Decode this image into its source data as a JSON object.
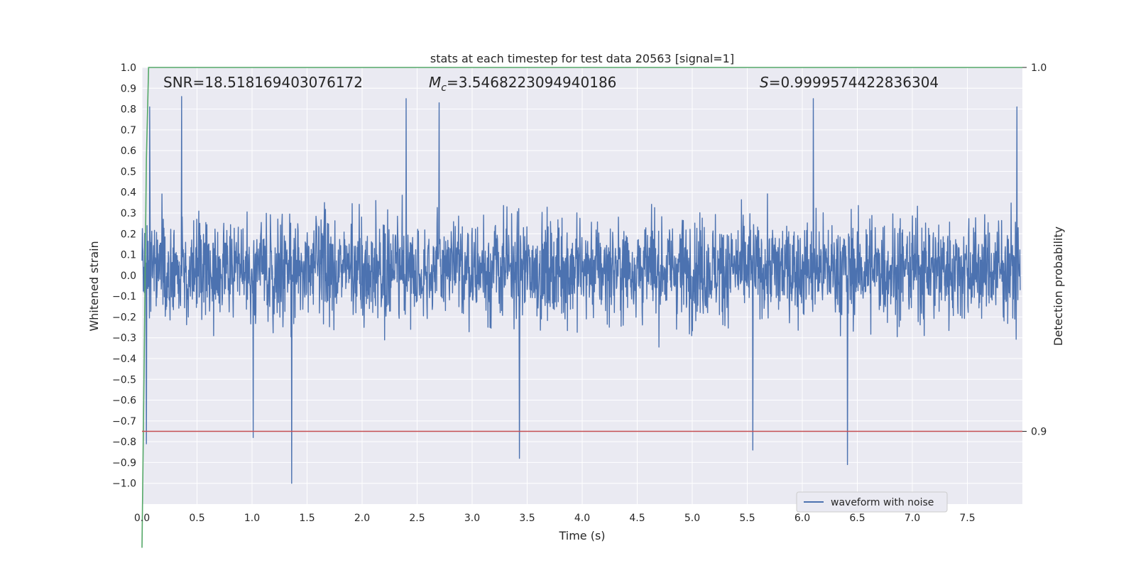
{
  "chart_data": {
    "type": "line",
    "title": "stats at each timestep for test data 20563 [signal=1]",
    "xlabel": "Time (s)",
    "ylabel": "Whitened strain",
    "y2label": "Detection probability",
    "xlim": [
      0.0,
      8.0
    ],
    "ylim": [
      -1.1,
      1.0
    ],
    "y2lim": [
      0.88,
      1.0
    ],
    "grid": true,
    "legend_position": "bottom-right",
    "x_ticks": [
      "0.0",
      "0.5",
      "1.0",
      "1.5",
      "2.0",
      "2.5",
      "3.0",
      "3.5",
      "4.0",
      "4.5",
      "5.0",
      "5.5",
      "6.0",
      "6.5",
      "7.0",
      "7.5"
    ],
    "y_ticks": [
      "1.0",
      "0.9",
      "0.8",
      "0.7",
      "0.6",
      "0.5",
      "0.4",
      "0.3",
      "0.2",
      "0.1",
      "0.0",
      "−0.1",
      "−0.2",
      "−0.3",
      "−0.4",
      "−0.5",
      "−0.6",
      "−0.7",
      "−0.8",
      "−0.9",
      "−1.0"
    ],
    "y2_ticks": [
      "1.0",
      "0.9"
    ],
    "annotations": {
      "snr": "SNR=18.518169403076172",
      "mc_symbol": "M",
      "mc_sub": "c",
      "mc_value": "=3.5468223094940186",
      "s_symbol": "S",
      "s_value": "=0.9999574422836304"
    },
    "series": [
      {
        "name": "waveform with noise",
        "color": "#4c72b0",
        "description_samples": "dense whitened-noise waveform, roughly symmetric about 0",
        "envelope": {
          "typical_min": -0.45,
          "typical_max": 0.5,
          "peak_min": -1.0,
          "peak_max": 0.91
        },
        "extreme_points": [
          {
            "x": 0.04,
            "y": -0.81
          },
          {
            "x": 0.07,
            "y": 0.81
          },
          {
            "x": 0.36,
            "y": 0.86
          },
          {
            "x": 1.01,
            "y": -0.78
          },
          {
            "x": 1.36,
            "y": -1.0
          },
          {
            "x": 2.4,
            "y": 0.85
          },
          {
            "x": 2.7,
            "y": 0.83
          },
          {
            "x": 3.43,
            "y": -0.88
          },
          {
            "x": 5.55,
            "y": -0.84
          },
          {
            "x": 6.1,
            "y": 0.85
          },
          {
            "x": 6.41,
            "y": -0.91
          },
          {
            "x": 7.95,
            "y": 0.81
          }
        ]
      },
      {
        "name": "",
        "color": "#55a868",
        "axis": "right",
        "description": "detection probability: rises from ~0.868 at t=0 to ~1.0 by t≈0.06 and stays flat",
        "x": [
          0.0,
          0.02,
          0.04,
          0.06,
          8.0
        ],
        "y": [
          0.868,
          0.92,
          0.975,
          1.0,
          1.0
        ]
      },
      {
        "name": "",
        "color": "#c44e52",
        "axis": "right",
        "description": "horizontal threshold line",
        "x": [
          0.0,
          8.0
        ],
        "y": [
          0.9,
          0.9
        ]
      }
    ],
    "legend": [
      {
        "label": "waveform with noise",
        "color": "#4c72b0"
      }
    ]
  },
  "colors": {
    "axes_bg": "#eaeaf2",
    "grid": "#ffffff",
    "waveform": "#4c72b0",
    "probability": "#55a868",
    "threshold": "#c44e52"
  }
}
